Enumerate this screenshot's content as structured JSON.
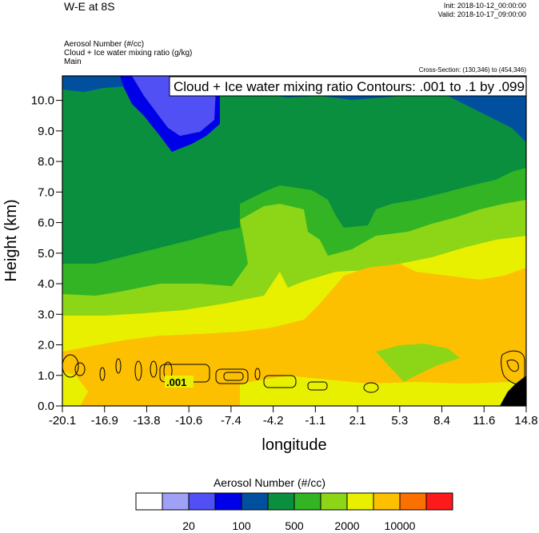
{
  "header": {
    "title": "W-E at 8S",
    "init": "Init: 2018-10-12_00:00:00",
    "valid": "Valid: 2018-10-17_09:00:00",
    "field1": "Aerosol Number   (#/cc)",
    "field2": "Cloud + Ice water mixing ratio   (g/kg)",
    "field3": "Main",
    "cross_section": "Cross-Section: (130,346) to (454,346)"
  },
  "chart_data": {
    "type": "heatmap",
    "title": "W-E at 8S",
    "xlabel": "longitude",
    "ylabel": "Height (km)",
    "xlim": [
      -20.1,
      14.8
    ],
    "ylim": [
      0.0,
      10.8
    ],
    "xticks": [
      "-20.1",
      "-16.9",
      "-13.8",
      "-10.6",
      "-7.4",
      "-4.2",
      "-1.1",
      "2.1",
      "5.3",
      "8.4",
      "11.6",
      "14.8"
    ],
    "yticks": [
      "0.0",
      "1.0",
      "2.0",
      "3.0",
      "4.0",
      "5.0",
      "6.0",
      "7.0",
      "8.0",
      "9.0",
      "10.0"
    ],
    "contour_label": "Cloud + Ice water mixing ratio Contours: .001 to .1 by .099",
    "contour_value_label": ".001",
    "colorbar": {
      "title": "Aerosol Number  (#/cc)",
      "colors": [
        "#ffffff",
        "#a0a0f7",
        "#5050f5",
        "#0000e8",
        "#00509f",
        "#0a8f3f",
        "#32b425",
        "#8cd617",
        "#e8f000",
        "#fcc000",
        "#fc7000",
        "#fc1a1a"
      ],
      "labels": [
        "20",
        "100",
        "500",
        "2000",
        "10000"
      ]
    }
  }
}
